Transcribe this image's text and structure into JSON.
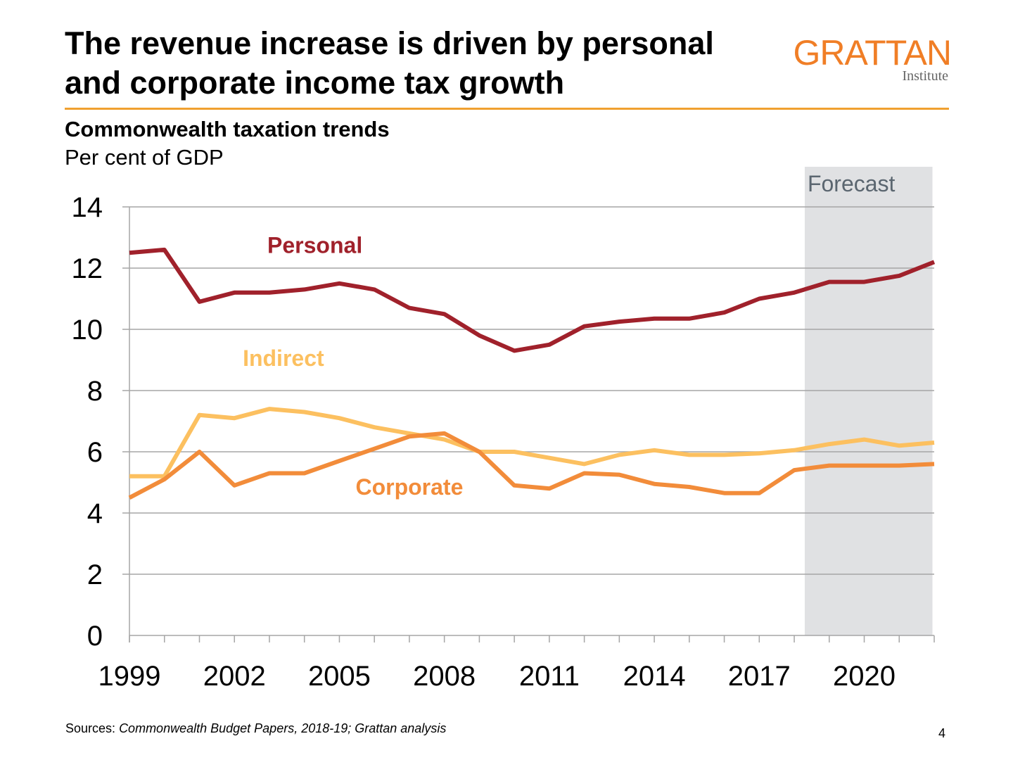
{
  "header": {
    "title_line1": "The revenue increase is driven by personal",
    "title_line2": "and corporate income tax growth",
    "logo_word": "GRATTAN",
    "logo_sub": "Institute"
  },
  "footer": {
    "sources_label": "Sources:",
    "sources_text": "Commonwealth Budget Papers, 2018-19; Grattan analysis",
    "page_number": "4"
  },
  "colors": {
    "accent_rule": "#f0a030",
    "logo": "#f07e26",
    "personal": "#a0212b",
    "indirect": "#fcc060",
    "corporate": "#f28c3a",
    "forecast_band": "#e0e1e3",
    "grid": "#a6a6a6"
  },
  "chart_data": {
    "type": "line",
    "title": "Commonwealth taxation trends",
    "subtitle": "Per cent of GDP",
    "ylim": [
      0,
      14
    ],
    "yticks": [
      "0",
      "2",
      "4",
      "6",
      "8",
      "10",
      "12",
      "14"
    ],
    "xticks": [
      "1999",
      "2002",
      "2005",
      "2008",
      "2011",
      "2014",
      "2017",
      "2020"
    ],
    "x": [
      1999,
      2000,
      2001,
      2002,
      2003,
      2004,
      2005,
      2006,
      2007,
      2008,
      2009,
      2010,
      2011,
      2012,
      2013,
      2014,
      2015,
      2016,
      2017,
      2018,
      2019,
      2020,
      2021,
      2022
    ],
    "x_range": [
      1999,
      2022
    ],
    "grid": true,
    "forecast": {
      "label": "Forecast",
      "x_start": 2018.3,
      "x_end": 2021.95
    },
    "series": [
      {
        "name": "Personal",
        "color": "#a0212b",
        "values": [
          12.5,
          12.6,
          10.9,
          11.2,
          11.2,
          11.3,
          11.5,
          11.3,
          10.7,
          10.5,
          9.8,
          9.3,
          9.5,
          10.1,
          10.25,
          10.35,
          10.35,
          10.55,
          11.0,
          11.2,
          11.55,
          11.55,
          11.75,
          12.2
        ]
      },
      {
        "name": "Indirect",
        "color": "#fcc060",
        "values": [
          5.2,
          5.2,
          7.2,
          7.1,
          7.4,
          7.3,
          7.1,
          6.8,
          6.6,
          6.4,
          6.0,
          6.0,
          5.8,
          5.6,
          5.9,
          6.05,
          5.9,
          5.9,
          5.95,
          6.05,
          6.25,
          6.4,
          6.2,
          6.3
        ]
      },
      {
        "name": "Corporate",
        "color": "#f28c3a",
        "values": [
          4.5,
          5.1,
          6.0,
          4.9,
          5.3,
          5.3,
          5.7,
          6.1,
          6.5,
          6.6,
          6.0,
          4.9,
          4.8,
          5.3,
          5.25,
          4.95,
          4.85,
          4.65,
          4.65,
          5.4,
          5.55,
          5.55,
          5.55,
          5.6
        ]
      }
    ],
    "labels": [
      {
        "text": "Personal",
        "series": "Personal",
        "x": 2004.3,
        "y": 12.5
      },
      {
        "text": "Indirect",
        "series": "Indirect",
        "x": 2003.4,
        "y": 8.8
      },
      {
        "text": "Corporate",
        "series": "Corporate",
        "x": 2007.0,
        "y": 4.6
      }
    ]
  }
}
